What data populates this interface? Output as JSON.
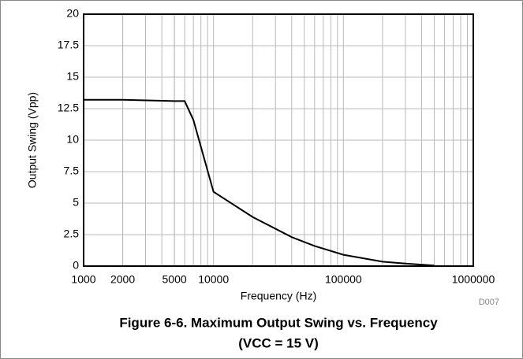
{
  "chart_data": {
    "type": "line",
    "title": "Figure 6-6. Maximum Output Swing vs. Frequency",
    "subtitle": "(VCC = 15 V)",
    "xlabel": "Frequency (Hz)",
    "ylabel": "Output Swing (Vpp)",
    "annotation": "D007",
    "x": [
      1000,
      2000,
      5000,
      6000,
      7000,
      10000,
      20000,
      40000,
      60000,
      100000,
      200000,
      300000,
      500000
    ],
    "values": [
      13.2,
      13.2,
      13.1,
      13.1,
      11.6,
      5.9,
      3.9,
      2.3,
      1.6,
      0.9,
      0.35,
      0.2,
      0.05
    ],
    "color": "#000000",
    "xscale": "log",
    "xlim": [
      1000,
      1000000
    ],
    "xticks": [
      1000,
      2000,
      5000,
      10000,
      100000,
      1000000
    ],
    "ylim": [
      0,
      20
    ],
    "yticks": [
      0,
      2.5,
      5,
      7.5,
      10,
      12.5,
      15,
      17.5,
      20
    ],
    "grid": true,
    "minor_grid": true
  }
}
